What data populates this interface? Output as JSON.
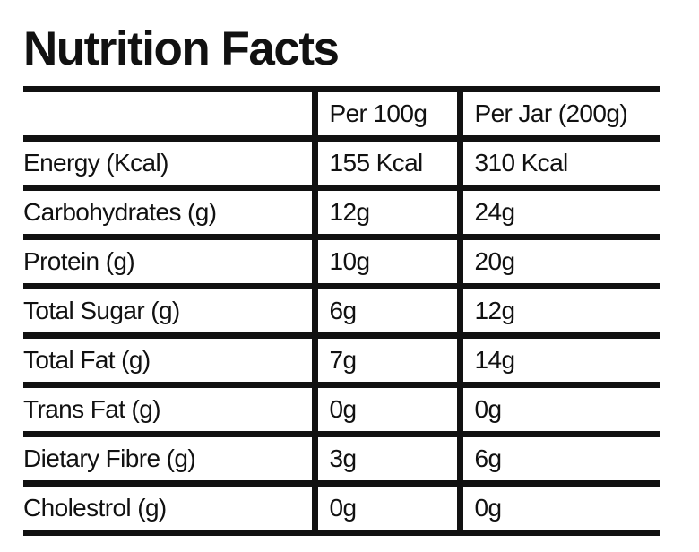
{
  "title": "Nutrition Facts",
  "table": {
    "headers": [
      "",
      "Per 100g",
      "Per Jar (200g)"
    ],
    "rows": [
      {
        "label": "Energy (Kcal)",
        "per_100g": "155 Kcal",
        "per_jar": "310 Kcal"
      },
      {
        "label": "Carbohydrates (g)",
        "per_100g": "12g",
        "per_jar": "24g"
      },
      {
        "label": "Protein (g)",
        "per_100g": "10g",
        "per_jar": "20g"
      },
      {
        "label": "Total Sugar (g)",
        "per_100g": "6g",
        "per_jar": "12g"
      },
      {
        "label": "Total Fat (g)",
        "per_100g": "7g",
        "per_jar": "14g"
      },
      {
        "label": "Trans Fat (g)",
        "per_100g": "0g",
        "per_jar": "0g"
      },
      {
        "label": "Dietary Fibre (g)",
        "per_100g": "3g",
        "per_jar": "6g"
      },
      {
        "label": "Cholestrol (g)",
        "per_100g": "0g",
        "per_jar": "0g"
      }
    ]
  }
}
